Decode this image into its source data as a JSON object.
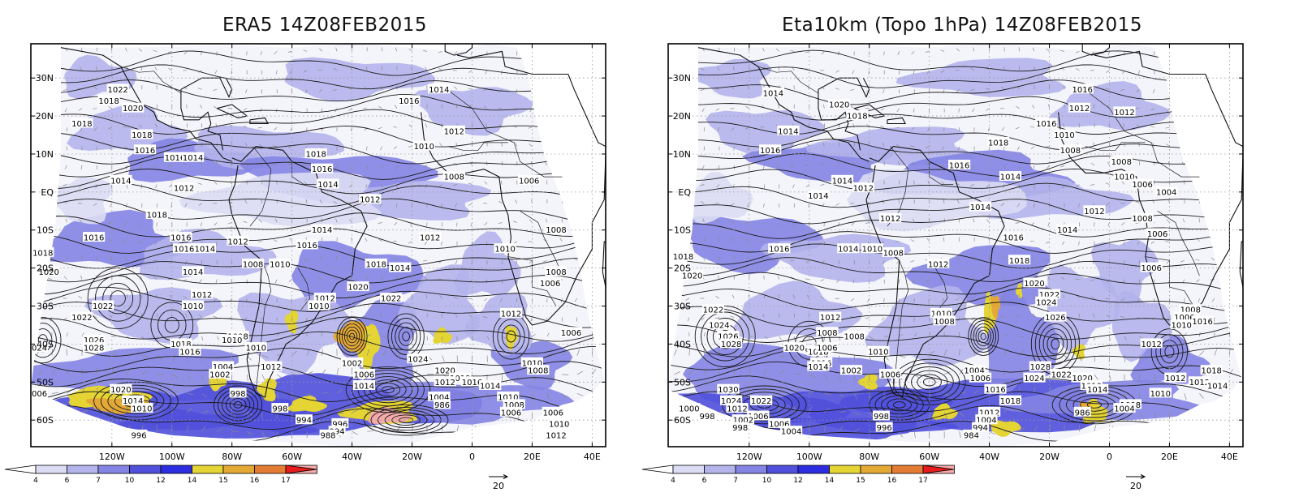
{
  "colorbar": {
    "bins": [
      {
        "label": "4",
        "color": "#dcdcf4"
      },
      {
        "label": "6",
        "color": "#b4b4ec"
      },
      {
        "label": "7",
        "color": "#8484e4"
      },
      {
        "label": "10",
        "color": "#5050dc"
      },
      {
        "label": "12",
        "color": "#2c2ce0"
      },
      {
        "label": "14",
        "color": "#e4d434"
      },
      {
        "label": "15",
        "color": "#e4a834"
      },
      {
        "label": "16",
        "color": "#e47c34"
      },
      {
        "label": "17",
        "color": "#f4aaaa"
      },
      {
        "label": "",
        "color": "#e81c1c"
      }
    ]
  },
  "vector_ref": "20",
  "axes": {
    "lon_ticks": [
      "120W",
      "100W",
      "80W",
      "60W",
      "40W",
      "20W",
      "0",
      "20E",
      "40E"
    ],
    "lat_ticks": [
      "30N",
      "20N",
      "10N",
      "EQ",
      "10S",
      "20S",
      "30S",
      "40S",
      "50S",
      "60S"
    ]
  },
  "panels": [
    {
      "title": "ERA5 14Z08FEB2015",
      "contour_labels": [
        {
          "text": "1022",
          "lon": -118,
          "lat": 27
        },
        {
          "text": "1018",
          "lon": -121,
          "lat": 24
        },
        {
          "text": "1020",
          "lon": -113,
          "lat": 22
        },
        {
          "text": "1018",
          "lon": -130,
          "lat": 18
        },
        {
          "text": "1018",
          "lon": -110,
          "lat": 15
        },
        {
          "text": "1016",
          "lon": -109,
          "lat": 11
        },
        {
          "text": "1016",
          "lon": -99,
          "lat": 9
        },
        {
          "text": "1014",
          "lon": -93,
          "lat": 9
        },
        {
          "text": "1014",
          "lon": -117,
          "lat": 3
        },
        {
          "text": "1012",
          "lon": -96,
          "lat": 1
        },
        {
          "text": "1018",
          "lon": -105,
          "lat": -6
        },
        {
          "text": "1016",
          "lon": -126,
          "lat": -12
        },
        {
          "text": "1018",
          "lon": -143,
          "lat": -16
        },
        {
          "text": "1020",
          "lon": -141,
          "lat": -21
        },
        {
          "text": "1022",
          "lon": -123,
          "lat": -30
        },
        {
          "text": "1022",
          "lon": -130,
          "lat": -33
        },
        {
          "text": "1026",
          "lon": -126,
          "lat": -39
        },
        {
          "text": "1028",
          "lon": -126,
          "lat": -41
        },
        {
          "text": "1024",
          "lon": -145,
          "lat": -41
        },
        {
          "text": "1016",
          "lon": -97,
          "lat": -12
        },
        {
          "text": "1016",
          "lon": -96,
          "lat": -15
        },
        {
          "text": "1014",
          "lon": -89,
          "lat": -15
        },
        {
          "text": "1012",
          "lon": -78,
          "lat": -13
        },
        {
          "text": "1008",
          "lon": -73,
          "lat": -19
        },
        {
          "text": "1010",
          "lon": -64,
          "lat": -19
        },
        {
          "text": "1014",
          "lon": -93,
          "lat": -21
        },
        {
          "text": "1012",
          "lon": -90,
          "lat": -27
        },
        {
          "text": "1010",
          "lon": -93,
          "lat": -30
        },
        {
          "text": "1008",
          "lon": -78,
          "lat": -38
        },
        {
          "text": "1010",
          "lon": -80,
          "lat": -39
        },
        {
          "text": "1018",
          "lon": -97,
          "lat": -40
        },
        {
          "text": "1016",
          "lon": -94,
          "lat": -42
        },
        {
          "text": "1010",
          "lon": -72,
          "lat": -41
        },
        {
          "text": "1012",
          "lon": -67,
          "lat": -46
        },
        {
          "text": "1004",
          "lon": -83,
          "lat": -46
        },
        {
          "text": "1002",
          "lon": -84,
          "lat": -48
        },
        {
          "text": "998",
          "lon": -78,
          "lat": -53
        },
        {
          "text": "998",
          "lon": -64,
          "lat": -57
        },
        {
          "text": "994",
          "lon": -56,
          "lat": -60
        },
        {
          "text": "996",
          "lon": -44,
          "lat": -61
        },
        {
          "text": "994",
          "lon": -45,
          "lat": -63
        },
        {
          "text": "988",
          "lon": -48,
          "lat": -64
        },
        {
          "text": "996",
          "lon": -111,
          "lat": -64
        },
        {
          "text": "1020",
          "lon": -117,
          "lat": -52
        },
        {
          "text": "1014",
          "lon": -113,
          "lat": -55
        },
        {
          "text": "1006",
          "lon": -145,
          "lat": -53
        },
        {
          "text": "1010",
          "lon": -110,
          "lat": -57
        },
        {
          "text": "1016",
          "lon": -55,
          "lat": -14
        },
        {
          "text": "1012",
          "lon": -49,
          "lat": -28
        },
        {
          "text": "1010",
          "lon": -51,
          "lat": -30
        },
        {
          "text": "1018",
          "lon": -32,
          "lat": -19
        },
        {
          "text": "1020",
          "lon": -38,
          "lat": -25
        },
        {
          "text": "1022",
          "lon": -27,
          "lat": -28
        },
        {
          "text": "1002",
          "lon": -40,
          "lat": -45
        },
        {
          "text": "1006",
          "lon": -36,
          "lat": -48
        },
        {
          "text": "1014",
          "lon": -36,
          "lat": -51
        },
        {
          "text": "1024",
          "lon": -18,
          "lat": -44
        },
        {
          "text": "1020",
          "lon": -9,
          "lat": -47
        },
        {
          "text": "1018",
          "lon": -4,
          "lat": -49
        },
        {
          "text": "1012",
          "lon": -9,
          "lat": -50
        },
        {
          "text": "1016",
          "lon": 0,
          "lat": -50
        },
        {
          "text": "1014",
          "lon": 6,
          "lat": -51
        },
        {
          "text": "1004",
          "lon": -11,
          "lat": -54
        },
        {
          "text": "986",
          "lon": -10,
          "lat": -56
        },
        {
          "text": "1010",
          "lon": 12,
          "lat": -54
        },
        {
          "text": "1008",
          "lon": 14,
          "lat": -56
        },
        {
          "text": "1006",
          "lon": 13,
          "lat": -58
        },
        {
          "text": "1016",
          "lon": -21,
          "lat": 24
        },
        {
          "text": "1014",
          "lon": -11,
          "lat": 27
        },
        {
          "text": "1012",
          "lon": -6,
          "lat": 16
        },
        {
          "text": "1010",
          "lon": -16,
          "lat": 12
        },
        {
          "text": "1018",
          "lon": -52,
          "lat": 10
        },
        {
          "text": "1016",
          "lon": -50,
          "lat": 6
        },
        {
          "text": "1014",
          "lon": -48,
          "lat": 2
        },
        {
          "text": "1012",
          "lon": -34,
          "lat": -2
        },
        {
          "text": "1008",
          "lon": -6,
          "lat": 4
        },
        {
          "text": "1006",
          "lon": 19,
          "lat": 3
        },
        {
          "text": "1014",
          "lon": -50,
          "lat": -10
        },
        {
          "text": "1012",
          "lon": -14,
          "lat": -12
        },
        {
          "text": "1014",
          "lon": -24,
          "lat": -20
        },
        {
          "text": "1010",
          "lon": 11,
          "lat": -15
        },
        {
          "text": "1008",
          "lon": 28,
          "lat": -10
        },
        {
          "text": "1008",
          "lon": 28,
          "lat": -21
        },
        {
          "text": "1006",
          "lon": 26,
          "lat": -24
        },
        {
          "text": "1012",
          "lon": 13,
          "lat": -32
        },
        {
          "text": "1010",
          "lon": 20,
          "lat": -45
        },
        {
          "text": "1008",
          "lon": 22,
          "lat": -47
        },
        {
          "text": "1006",
          "lon": 27,
          "lat": -58
        },
        {
          "text": "1010",
          "lon": 29,
          "lat": -61
        },
        {
          "text": "1012",
          "lon": 28,
          "lat": -64
        },
        {
          "text": "1006",
          "lon": 33,
          "lat": -37
        }
      ]
    },
    {
      "title": "Eta10km (Topo 1hPa) 14Z08FEB2015",
      "contour_labels": [
        {
          "text": "1014",
          "lon": -112,
          "lat": 26
        },
        {
          "text": "1020",
          "lon": -90,
          "lat": 23
        },
        {
          "text": "1018",
          "lon": -84,
          "lat": 20
        },
        {
          "text": "1014",
          "lon": -107,
          "lat": 16
        },
        {
          "text": "1016",
          "lon": -113,
          "lat": 11
        },
        {
          "text": "1014",
          "lon": -89,
          "lat": 3
        },
        {
          "text": "1012",
          "lon": -82,
          "lat": 1
        },
        {
          "text": "1014",
          "lon": -97,
          "lat": -1
        },
        {
          "text": "1012",
          "lon": -73,
          "lat": -7
        },
        {
          "text": "1018",
          "lon": -142,
          "lat": -17
        },
        {
          "text": "1016",
          "lon": -110,
          "lat": -15
        },
        {
          "text": "1020",
          "lon": -139,
          "lat": -22
        },
        {
          "text": "1022",
          "lon": -132,
          "lat": -31
        },
        {
          "text": "1024",
          "lon": -130,
          "lat": -35
        },
        {
          "text": "1026",
          "lon": -127,
          "lat": -38
        },
        {
          "text": "1028",
          "lon": -126,
          "lat": -40
        },
        {
          "text": "1020",
          "lon": -105,
          "lat": -41
        },
        {
          "text": "1018",
          "lon": -97,
          "lat": -42
        },
        {
          "text": "1016",
          "lon": -96,
          "lat": -45
        },
        {
          "text": "1014",
          "lon": -97,
          "lat": -46
        },
        {
          "text": "1014",
          "lon": -87,
          "lat": -15
        },
        {
          "text": "1010",
          "lon": -79,
          "lat": -15
        },
        {
          "text": "1008",
          "lon": -72,
          "lat": -16
        },
        {
          "text": "1012",
          "lon": -93,
          "lat": -33
        },
        {
          "text": "1008",
          "lon": -94,
          "lat": -37
        },
        {
          "text": "1006",
          "lon": -94,
          "lat": -41
        },
        {
          "text": "1008",
          "lon": -85,
          "lat": -38
        },
        {
          "text": "1010",
          "lon": -77,
          "lat": -42
        },
        {
          "text": "1002",
          "lon": -86,
          "lat": -47
        },
        {
          "text": "1006",
          "lon": -73,
          "lat": -48
        },
        {
          "text": "998",
          "lon": -76,
          "lat": -59
        },
        {
          "text": "996",
          "lon": -75,
          "lat": -62
        },
        {
          "text": "1030",
          "lon": -127,
          "lat": -52
        },
        {
          "text": "1024",
          "lon": -126,
          "lat": -55
        },
        {
          "text": "1022",
          "lon": -116,
          "lat": -55
        },
        {
          "text": "1012",
          "lon": -124,
          "lat": -57
        },
        {
          "text": "1006",
          "lon": -117,
          "lat": -59
        },
        {
          "text": "1002",
          "lon": -122,
          "lat": -60
        },
        {
          "text": "998",
          "lon": -123,
          "lat": -62
        },
        {
          "text": "1000",
          "lon": -140,
          "lat": -57
        },
        {
          "text": "998",
          "lon": -134,
          "lat": -59
        },
        {
          "text": "1006",
          "lon": -110,
          "lat": -61
        },
        {
          "text": "1004",
          "lon": -106,
          "lat": -63
        },
        {
          "text": "1012",
          "lon": -57,
          "lat": -19
        },
        {
          "text": "1010",
          "lon": -56,
          "lat": -32
        },
        {
          "text": "1008",
          "lon": -55,
          "lat": -34
        },
        {
          "text": "1016",
          "lon": -32,
          "lat": -12
        },
        {
          "text": "1018",
          "lon": -30,
          "lat": -18
        },
        {
          "text": "1020",
          "lon": -25,
          "lat": -24
        },
        {
          "text": "1022",
          "lon": -20,
          "lat": -27
        },
        {
          "text": "1024",
          "lon": -21,
          "lat": -29
        },
        {
          "text": "1026",
          "lon": -18,
          "lat": -33
        },
        {
          "text": "1028",
          "lon": -23,
          "lat": -46
        },
        {
          "text": "1024",
          "lon": -25,
          "lat": -49
        },
        {
          "text": "1022",
          "lon": -16,
          "lat": -48
        },
        {
          "text": "1004",
          "lon": -45,
          "lat": -47
        },
        {
          "text": "1006",
          "lon": -43,
          "lat": -49
        },
        {
          "text": "1016",
          "lon": -38,
          "lat": -52
        },
        {
          "text": "1018",
          "lon": -33,
          "lat": -55
        },
        {
          "text": "1012",
          "lon": -40,
          "lat": -58
        },
        {
          "text": "1004",
          "lon": -41,
          "lat": -60
        },
        {
          "text": "994",
          "lon": -43,
          "lat": -62
        },
        {
          "text": "984",
          "lon": -46,
          "lat": -64
        },
        {
          "text": "1020",
          "lon": -9,
          "lat": -49
        },
        {
          "text": "1018",
          "lon": -6,
          "lat": -51
        },
        {
          "text": "1014",
          "lon": -4,
          "lat": -52
        },
        {
          "text": "986",
          "lon": -9,
          "lat": -58
        },
        {
          "text": "1008",
          "lon": 7,
          "lat": -56
        },
        {
          "text": "1004",
          "lon": 5,
          "lat": -57
        },
        {
          "text": "1010",
          "lon": 17,
          "lat": -53
        },
        {
          "text": "1012",
          "lon": 22,
          "lat": -49
        },
        {
          "text": "1012",
          "lon": 30,
          "lat": -50
        },
        {
          "text": "1018",
          "lon": 34,
          "lat": -47
        },
        {
          "text": "1014",
          "lon": 36,
          "lat": -51
        },
        {
          "text": "1016",
          "lon": -9,
          "lat": 27
        },
        {
          "text": "1012",
          "lon": -10,
          "lat": 22
        },
        {
          "text": "1012",
          "lon": 5,
          "lat": 21
        },
        {
          "text": "1016",
          "lon": -21,
          "lat": 18
        },
        {
          "text": "1010",
          "lon": -15,
          "lat": 15
        },
        {
          "text": "1008",
          "lon": -13,
          "lat": 11
        },
        {
          "text": "1018",
          "lon": -37,
          "lat": 13
        },
        {
          "text": "1016",
          "lon": -50,
          "lat": 7
        },
        {
          "text": "1014",
          "lon": -33,
          "lat": 4
        },
        {
          "text": "1014",
          "lon": -43,
          "lat": -4
        },
        {
          "text": "1012",
          "lon": -5,
          "lat": -5
        },
        {
          "text": "1014",
          "lon": -14,
          "lat": -10
        },
        {
          "text": "1008",
          "lon": 4,
          "lat": 8
        },
        {
          "text": "1010",
          "lon": 5,
          "lat": 4
        },
        {
          "text": "1006",
          "lon": 11,
          "lat": 2
        },
        {
          "text": "1004",
          "lon": 19,
          "lat": 0
        },
        {
          "text": "1008",
          "lon": 11,
          "lat": -7
        },
        {
          "text": "1006",
          "lon": 16,
          "lat": -11
        },
        {
          "text": "1006",
          "lon": 14,
          "lat": -20
        },
        {
          "text": "1008",
          "lon": 27,
          "lat": -31
        },
        {
          "text": "1006",
          "lon": 25,
          "lat": -33
        },
        {
          "text": "1010",
          "lon": 24,
          "lat": -35
        },
        {
          "text": "1016",
          "lon": 31,
          "lat": -34
        },
        {
          "text": "1012",
          "lon": 14,
          "lat": -40
        }
      ]
    }
  ]
}
